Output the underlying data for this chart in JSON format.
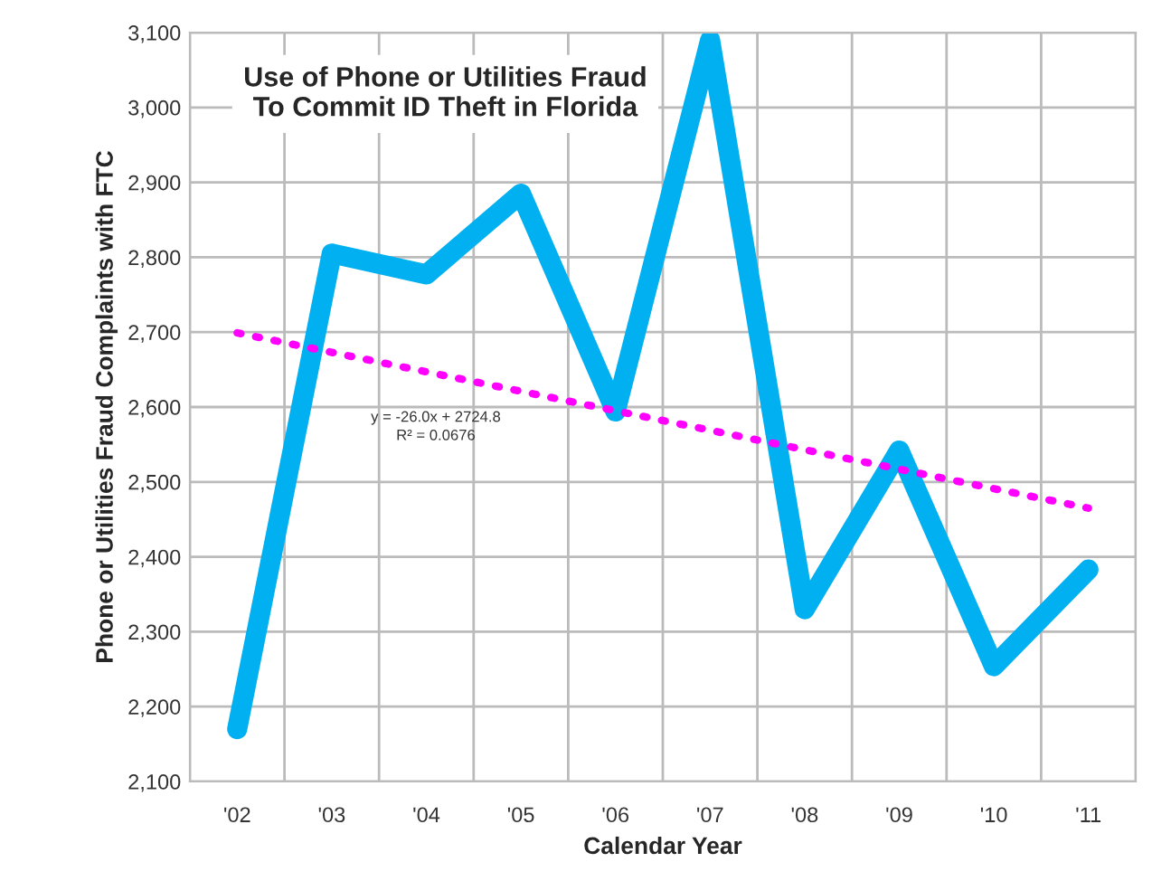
{
  "chart_data": {
    "type": "line",
    "title": "Use of Phone or Utilities Fraud\nTo Commit ID Theft in Florida",
    "xlabel": "Calendar Year",
    "ylabel": "Phone or Utilities Fraud Complaints with FTC",
    "categories": [
      "'02",
      "'03",
      "'04",
      "'05",
      "'06",
      "'07",
      "'08",
      "'09",
      "'10",
      "'11"
    ],
    "series": [
      {
        "type": "line",
        "color": "#00b0f0",
        "line_style": "solid",
        "values": [
          2170,
          2805,
          2777,
          2885,
          2594,
          3090,
          2330,
          2542,
          2254,
          2383
        ]
      },
      {
        "type": "line",
        "color": "#ff00ff",
        "line_style": "dotted",
        "values": [
          2699,
          2673,
          2647,
          2621,
          2595,
          2569,
          2543,
          2517,
          2491,
          2465
        ]
      }
    ],
    "annotations": [
      "y = -26.0x + 2724.8\nR² = 0.0676"
    ],
    "ylim": [
      2100,
      3100
    ],
    "yticks": [
      {
        "value": 2100,
        "label": "2,100"
      },
      {
        "value": 2200,
        "label": "2,200"
      },
      {
        "value": 2300,
        "label": "2,300"
      },
      {
        "value": 2400,
        "label": "2,400"
      },
      {
        "value": 2500,
        "label": "2,500"
      },
      {
        "value": 2600,
        "label": "2,600"
      },
      {
        "value": 2700,
        "label": "2,700"
      },
      {
        "value": 2800,
        "label": "2,800"
      },
      {
        "value": 2900,
        "label": "2,900"
      },
      {
        "value": 3000,
        "label": "3,000"
      },
      {
        "value": 3100,
        "label": "3,100"
      }
    ],
    "grid": true,
    "legend": false,
    "marker": "none"
  }
}
